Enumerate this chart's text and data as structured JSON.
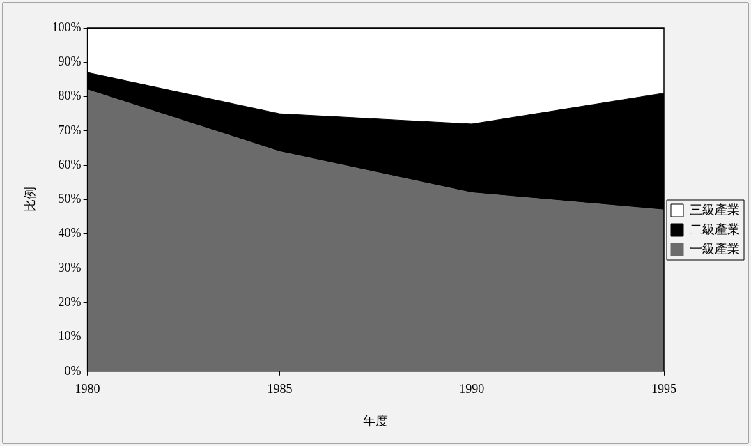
{
  "chart_data": {
    "type": "area",
    "xlabel": "年度",
    "ylabel": "比例",
    "categories": [
      "1980",
      "1985",
      "1990",
      "1995"
    ],
    "stacked": true,
    "series": [
      {
        "name": "一級產業",
        "color": "#6b6b6b",
        "values": [
          82,
          64,
          52,
          47
        ]
      },
      {
        "name": "二級產業",
        "color": "#000000",
        "values": [
          5,
          11,
          20,
          34
        ]
      },
      {
        "name": "三級產業",
        "color": "#ffffff",
        "values": [
          13,
          25,
          28,
          19
        ]
      }
    ],
    "ylim": [
      0,
      100
    ],
    "yticks": [
      {
        "value": 0,
        "label": "0%"
      },
      {
        "value": 10,
        "label": "10%"
      },
      {
        "value": 20,
        "label": "20%"
      },
      {
        "value": 30,
        "label": "30%"
      },
      {
        "value": 40,
        "label": "40%"
      },
      {
        "value": 50,
        "label": "50%"
      },
      {
        "value": 60,
        "label": "60%"
      },
      {
        "value": 70,
        "label": "70%"
      },
      {
        "value": 80,
        "label": "80%"
      },
      {
        "value": 90,
        "label": "90%"
      },
      {
        "value": 100,
        "label": "100%"
      }
    ],
    "grid": false,
    "legend": "right"
  }
}
